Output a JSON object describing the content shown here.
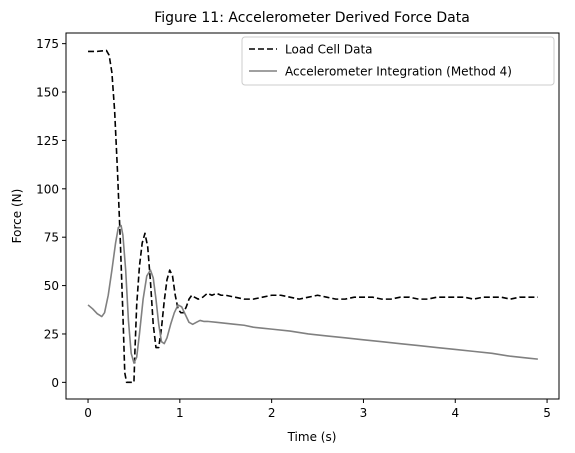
{
  "chart_data": {
    "type": "line",
    "title": "Figure 11: Accelerometer Derived Force Data",
    "xlabel": "Time (s)",
    "ylabel": "Force (N)",
    "xlim": [
      -0.24,
      5.13
    ],
    "ylim": [
      -8.6,
      180.5
    ],
    "xticks": [
      0,
      1,
      2,
      3,
      4,
      5
    ],
    "xtick_labels": [
      "0",
      "1",
      "2",
      "3",
      "4",
      "5"
    ],
    "yticks": [
      0,
      25,
      50,
      75,
      100,
      125,
      150,
      175
    ],
    "ytick_labels": [
      "0",
      "25",
      "50",
      "75",
      "100",
      "125",
      "150",
      "175"
    ],
    "grid": false,
    "legend_position": "top-right",
    "series": [
      {
        "name": "Load Cell Data",
        "color": "#000000",
        "style": "dashed",
        "x": [
          0,
          0.1,
          0.2,
          0.23,
          0.26,
          0.29,
          0.32,
          0.35,
          0.38,
          0.4,
          0.42,
          0.44,
          0.5,
          0.51,
          0.53,
          0.56,
          0.59,
          0.62,
          0.65,
          0.68,
          0.71,
          0.74,
          0.77,
          0.8,
          0.83,
          0.86,
          0.89,
          0.92,
          0.95,
          0.98,
          1.01,
          1.04,
          1.07,
          1.1,
          1.13,
          1.16,
          1.2,
          1.25,
          1.3,
          1.35,
          1.4,
          1.45,
          1.5,
          1.6,
          1.7,
          1.8,
          1.9,
          2.0,
          2.1,
          2.2,
          2.3,
          2.4,
          2.5,
          2.6,
          2.7,
          2.8,
          2.9,
          3.0,
          3.1,
          3.2,
          3.3,
          3.4,
          3.5,
          3.6,
          3.7,
          3.8,
          3.9,
          4.0,
          4.1,
          4.2,
          4.3,
          4.4,
          4.5,
          4.6,
          4.7,
          4.8,
          4.9
        ],
        "y": [
          171,
          171,
          171.5,
          169,
          160,
          140,
          110,
          75,
          35,
          5,
          0,
          0,
          0,
          15,
          40,
          60,
          72,
          77,
          70,
          52,
          30,
          18,
          18,
          28,
          42,
          53,
          58,
          55,
          45,
          38,
          36,
          36,
          39,
          43,
          45,
          44,
          43,
          44,
          46,
          45,
          46,
          45,
          45,
          44,
          43,
          43,
          44,
          45,
          45,
          44,
          43,
          44,
          45,
          44,
          43,
          43,
          44,
          44,
          44,
          43,
          43,
          44,
          44,
          43,
          43,
          44,
          44,
          44,
          44,
          43,
          44,
          44,
          44,
          43,
          44,
          44,
          44
        ]
      },
      {
        "name": "Accelerometer Integration (Method 4)",
        "color": "#808080",
        "style": "solid",
        "x": [
          0,
          0.05,
          0.1,
          0.15,
          0.18,
          0.22,
          0.26,
          0.3,
          0.33,
          0.36,
          0.38,
          0.41,
          0.44,
          0.47,
          0.5,
          0.53,
          0.56,
          0.6,
          0.64,
          0.68,
          0.71,
          0.74,
          0.77,
          0.8,
          0.83,
          0.86,
          0.9,
          0.94,
          0.98,
          1.02,
          1.06,
          1.1,
          1.14,
          1.18,
          1.22,
          1.26,
          1.3,
          1.4,
          1.5,
          1.6,
          1.7,
          1.8,
          1.9,
          2.0,
          2.2,
          2.4,
          2.6,
          2.8,
          3.0,
          3.2,
          3.4,
          3.6,
          3.8,
          4.0,
          4.2,
          4.4,
          4.6,
          4.8,
          4.9
        ],
        "y": [
          40,
          38,
          35.5,
          34,
          36,
          45,
          58,
          72,
          80,
          81,
          76,
          58,
          32,
          15,
          10,
          13,
          25,
          43,
          55,
          58,
          54,
          43,
          30,
          21,
          20,
          23,
          30,
          36,
          40,
          39,
          35,
          31,
          30,
          31,
          32,
          31.5,
          31.5,
          31,
          30.5,
          30,
          29.5,
          28.5,
          28,
          27.5,
          26.5,
          25,
          24,
          23,
          22,
          21,
          20,
          19,
          18,
          17,
          16,
          15,
          13.5,
          12.5,
          12
        ]
      }
    ]
  }
}
